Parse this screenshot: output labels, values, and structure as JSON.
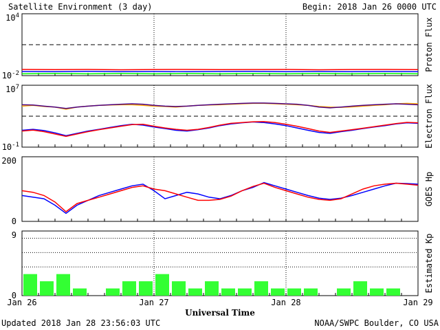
{
  "header": {
    "title": "Satellite Environment (3 day)",
    "begin": "Begin:  2018 Jan 26 0000 UTC"
  },
  "footer": {
    "updated": "Updated 2018 Jan 28 23:56:03 UTC",
    "credit": "NOAA/SWPC Boulder, CO USA"
  },
  "colors": {
    "red": "#ff0000",
    "blue": "#0000ff",
    "green": "#00ff00",
    "orange": "#ffa500",
    "purple": "#4b0082",
    "kp_bar": "#33ff33"
  },
  "chart_data": [
    {
      "type": "line",
      "ylabel": "Proton Flux",
      "yscale": "log",
      "ylim": [
        0.01,
        10000
      ],
      "y_ticks": [
        {
          "base": "10",
          "exp": "4"
        },
        {
          "base": "10",
          "exp": "-2"
        }
      ],
      "threshold": 10,
      "x": [
        0,
        6,
        12,
        18,
        24,
        30,
        36,
        42,
        48,
        54,
        60,
        66,
        72
      ],
      "series": [
        {
          "color": "red",
          "values": [
            0.04,
            0.038,
            0.04,
            0.037,
            0.039,
            0.04,
            0.038,
            0.039,
            0.04,
            0.037,
            0.039,
            0.04,
            0.038
          ]
        },
        {
          "color": "blue",
          "values": [
            0.025,
            0.024,
            0.026,
            0.024,
            0.025,
            0.024,
            0.025,
            0.026,
            0.024,
            0.025,
            0.024,
            0.025,
            0.024
          ]
        },
        {
          "color": "green",
          "values": [
            0.015,
            0.016,
            0.015,
            0.016,
            0.015,
            0.016,
            0.015,
            0.016,
            0.015,
            0.016,
            0.015,
            0.016,
            0.015
          ]
        }
      ]
    },
    {
      "type": "line",
      "ylabel": "Electron Flux",
      "yscale": "log",
      "ylim": [
        0.1,
        10000000
      ],
      "y_ticks": [
        {
          "base": "10",
          "exp": "7"
        },
        {
          "base": "10",
          "exp": "-1"
        }
      ],
      "threshold": 1000,
      "x": [
        0,
        2,
        4,
        6,
        8,
        10,
        12,
        14,
        16,
        18,
        20,
        22,
        24,
        26,
        28,
        30,
        32,
        34,
        36,
        38,
        40,
        42,
        44,
        46,
        48,
        50,
        52,
        54,
        56,
        58,
        60,
        62,
        64,
        66,
        68,
        70,
        72
      ],
      "series": [
        {
          "color": "orange",
          "values": [
            20000,
            25000,
            18000,
            15000,
            8000,
            15000,
            20000,
            25000,
            28000,
            30000,
            30000,
            25000,
            20000,
            18000,
            15000,
            20000,
            25000,
            28000,
            30000,
            35000,
            40000,
            45000,
            45000,
            40000,
            35000,
            30000,
            25000,
            18000,
            15000,
            14000,
            16000,
            20000,
            25000,
            30000,
            40000,
            45000,
            40000
          ]
        },
        {
          "color": "purple",
          "values": [
            30000,
            28000,
            20000,
            15000,
            10000,
            15000,
            20000,
            25000,
            30000,
            35000,
            40000,
            35000,
            25000,
            20000,
            18000,
            20000,
            25000,
            30000,
            35000,
            40000,
            45000,
            50000,
            50000,
            45000,
            40000,
            35000,
            25000,
            15000,
            12000,
            15000,
            20000,
            25000,
            30000,
            35000,
            40000,
            35000,
            30000
          ]
        },
        {
          "color": "blue",
          "values": [
            15,
            20,
            14,
            7,
            3,
            6,
            12,
            20,
            35,
            60,
            90,
            70,
            40,
            25,
            15,
            12,
            18,
            30,
            60,
            100,
            140,
            180,
            150,
            100,
            60,
            30,
            15,
            8,
            6,
            10,
            15,
            25,
            40,
            60,
            100,
            140,
            120
          ]
        },
        {
          "color": "red",
          "values": [
            12,
            16,
            10,
            5,
            2.5,
            5,
            10,
            18,
            30,
            50,
            80,
            90,
            50,
            30,
            20,
            15,
            20,
            35,
            70,
            120,
            150,
            190,
            200,
            150,
            90,
            50,
            25,
            12,
            8,
            12,
            18,
            28,
            45,
            70,
            110,
            160,
            140
          ]
        }
      ]
    },
    {
      "type": "line",
      "ylabel": "GOES Hp",
      "ylim": [
        0,
        200
      ],
      "y_ticks": [
        "200",
        "0"
      ],
      "x": [
        0,
        2,
        4,
        6,
        8,
        10,
        12,
        14,
        16,
        18,
        20,
        22,
        24,
        26,
        28,
        30,
        32,
        34,
        36,
        38,
        40,
        42,
        44,
        46,
        48,
        50,
        52,
        54,
        56,
        58,
        60,
        62,
        64,
        66,
        68,
        70,
        72
      ],
      "series": [
        {
          "color": "blue",
          "values": [
            80,
            75,
            70,
            50,
            25,
            50,
            65,
            80,
            90,
            100,
            110,
            115,
            95,
            70,
            80,
            90,
            85,
            75,
            70,
            80,
            95,
            105,
            120,
            110,
            100,
            90,
            80,
            72,
            68,
            72,
            80,
            90,
            100,
            110,
            118,
            117,
            115
          ]
        },
        {
          "color": "red",
          "values": [
            95,
            90,
            80,
            60,
            30,
            55,
            65,
            75,
            85,
            95,
            105,
            110,
            100,
            95,
            85,
            75,
            65,
            65,
            68,
            78,
            95,
            108,
            118,
            105,
            95,
            85,
            75,
            68,
            65,
            70,
            85,
            100,
            110,
            115,
            118,
            115,
            112
          ]
        }
      ]
    },
    {
      "type": "bar",
      "ylabel": "Estimated Kp",
      "ylim": [
        0,
        9
      ],
      "y_ticks": [
        "9",
        "0"
      ],
      "dotted_levels": [
        4,
        6,
        8
      ],
      "xlabel": "Universal Time",
      "x_tick_labels": [
        "Jan 26",
        "Jan 27",
        "Jan 28",
        "Jan 29"
      ],
      "x_tick_hours": [
        0,
        24,
        48,
        72
      ],
      "bar_hours": [
        0,
        3,
        6,
        9,
        12,
        15,
        18,
        21,
        24,
        27,
        30,
        33,
        36,
        39,
        42,
        45,
        48,
        51,
        54,
        57,
        60,
        63,
        66,
        69
      ],
      "values": [
        3,
        2,
        3,
        1,
        0,
        1,
        2,
        2,
        3,
        2,
        1,
        2,
        1,
        1,
        2,
        1,
        1,
        1,
        0,
        1,
        2,
        1,
        1,
        0
      ]
    }
  ]
}
